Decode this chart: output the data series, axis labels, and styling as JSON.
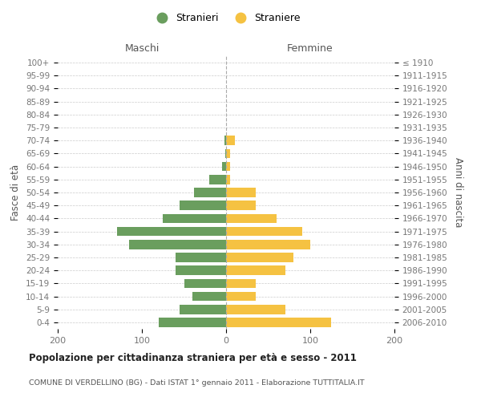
{
  "age_groups": [
    "100+",
    "95-99",
    "90-94",
    "85-89",
    "80-84",
    "75-79",
    "70-74",
    "65-69",
    "60-64",
    "55-59",
    "50-54",
    "45-49",
    "40-44",
    "35-39",
    "30-34",
    "25-29",
    "20-24",
    "15-19",
    "10-14",
    "5-9",
    "0-4"
  ],
  "birth_years": [
    "≤ 1910",
    "1911-1915",
    "1916-1920",
    "1921-1925",
    "1926-1930",
    "1931-1935",
    "1936-1940",
    "1941-1945",
    "1946-1950",
    "1951-1955",
    "1956-1960",
    "1961-1965",
    "1966-1970",
    "1971-1975",
    "1976-1980",
    "1981-1985",
    "1986-1990",
    "1991-1995",
    "1996-2000",
    "2001-2005",
    "2006-2010"
  ],
  "maschi": [
    0,
    0,
    0,
    0,
    0,
    0,
    2,
    1,
    5,
    20,
    38,
    55,
    75,
    130,
    115,
    60,
    60,
    50,
    40,
    55,
    80
  ],
  "femmine": [
    0,
    0,
    0,
    0,
    0,
    0,
    10,
    5,
    5,
    5,
    35,
    35,
    60,
    90,
    100,
    80,
    70,
    35,
    35,
    70,
    125
  ],
  "color_maschi": "#6a9e5e",
  "color_femmine": "#f5c242",
  "title": "Popolazione per cittadinanza straniera per età e sesso - 2011",
  "subtitle": "COMUNE DI VERDELLINO (BG) - Dati ISTAT 1° gennaio 2011 - Elaborazione TUTTITALIA.IT",
  "ylabel_left": "Fasce di età",
  "ylabel_right": "Anni di nascita",
  "xlabel_maschi": "Maschi",
  "xlabel_femmine": "Femmine",
  "xlim": 200,
  "legend_stranieri": "Stranieri",
  "legend_straniere": "Straniere",
  "background_color": "#ffffff",
  "grid_color": "#cccccc"
}
